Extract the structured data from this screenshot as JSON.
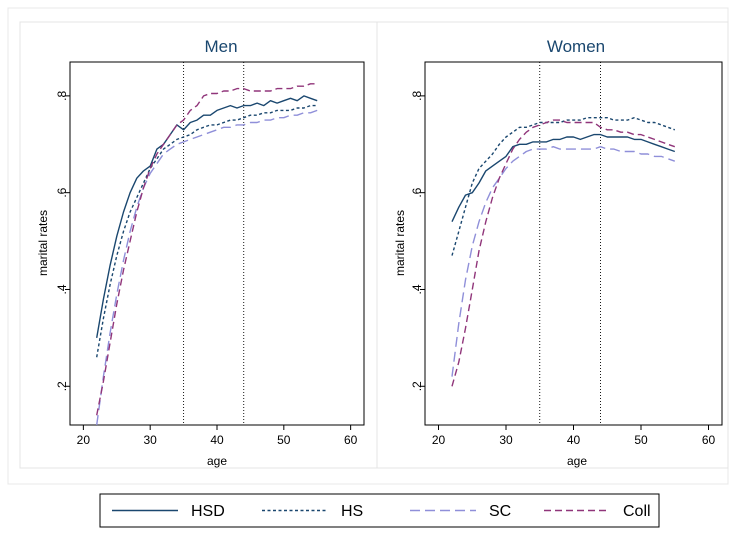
{
  "chart_data": [
    {
      "type": "line",
      "title": "Men",
      "xlabel": "age",
      "ylabel": "marital rates",
      "xlim": [
        18,
        62
      ],
      "ylim": [
        0.12,
        0.87
      ],
      "xticks": [
        20,
        30,
        40,
        50,
        60
      ],
      "yticks": [
        0.2,
        0.4,
        0.6,
        0.8
      ],
      "ytick_labels": [
        ".2",
        ".4",
        ".6",
        ".8"
      ],
      "vlines": [
        35,
        44
      ],
      "series": [
        {
          "name": "HSD",
          "color": "#1a476f",
          "dash": "solid",
          "x": [
            22,
            23,
            24,
            25,
            26,
            27,
            28,
            29,
            30,
            31,
            32,
            33,
            34,
            35,
            36,
            37,
            38,
            39,
            40,
            41,
            42,
            43,
            44,
            45,
            46,
            47,
            48,
            49,
            50,
            51,
            52,
            53,
            54,
            55
          ],
          "y": [
            0.3,
            0.38,
            0.45,
            0.51,
            0.56,
            0.6,
            0.63,
            0.645,
            0.655,
            0.69,
            0.7,
            0.72,
            0.74,
            0.73,
            0.745,
            0.75,
            0.76,
            0.76,
            0.77,
            0.775,
            0.78,
            0.775,
            0.78,
            0.78,
            0.785,
            0.78,
            0.79,
            0.785,
            0.79,
            0.795,
            0.79,
            0.8,
            0.795,
            0.79
          ]
        },
        {
          "name": "HS",
          "color": "#1a476f",
          "dash": "dotted",
          "x": [
            22,
            23,
            24,
            25,
            26,
            27,
            28,
            29,
            30,
            31,
            32,
            33,
            34,
            35,
            36,
            37,
            38,
            39,
            40,
            41,
            42,
            43,
            44,
            45,
            46,
            47,
            48,
            49,
            50,
            51,
            52,
            53,
            54,
            55
          ],
          "y": [
            0.26,
            0.34,
            0.41,
            0.47,
            0.52,
            0.56,
            0.59,
            0.62,
            0.65,
            0.67,
            0.69,
            0.7,
            0.71,
            0.715,
            0.72,
            0.73,
            0.735,
            0.74,
            0.74,
            0.745,
            0.75,
            0.75,
            0.755,
            0.76,
            0.76,
            0.765,
            0.765,
            0.77,
            0.77,
            0.77,
            0.775,
            0.775,
            0.78,
            0.78
          ]
        },
        {
          "name": "SC",
          "color": "#8f8fd9",
          "dash": "longdash",
          "x": [
            22,
            23,
            24,
            25,
            26,
            27,
            28,
            29,
            30,
            31,
            32,
            33,
            34,
            35,
            36,
            37,
            38,
            39,
            40,
            41,
            42,
            43,
            44,
            45,
            46,
            47,
            48,
            49,
            50,
            51,
            52,
            53,
            54,
            55
          ],
          "y": [
            0.12,
            0.22,
            0.31,
            0.39,
            0.46,
            0.52,
            0.57,
            0.61,
            0.64,
            0.66,
            0.68,
            0.69,
            0.7,
            0.705,
            0.71,
            0.715,
            0.72,
            0.725,
            0.73,
            0.735,
            0.735,
            0.74,
            0.74,
            0.745,
            0.745,
            0.75,
            0.75,
            0.755,
            0.755,
            0.76,
            0.76,
            0.765,
            0.765,
            0.77
          ]
        },
        {
          "name": "Coll",
          "color": "#90357a",
          "dash": "dash",
          "x": [
            22,
            23,
            24,
            25,
            26,
            27,
            28,
            29,
            30,
            31,
            32,
            33,
            34,
            35,
            36,
            37,
            38,
            39,
            40,
            41,
            42,
            43,
            44,
            45,
            46,
            47,
            48,
            49,
            50,
            51,
            52,
            53,
            54,
            55
          ],
          "y": [
            0.14,
            0.21,
            0.29,
            0.37,
            0.44,
            0.5,
            0.56,
            0.61,
            0.65,
            0.68,
            0.7,
            0.72,
            0.74,
            0.75,
            0.77,
            0.78,
            0.8,
            0.805,
            0.805,
            0.81,
            0.81,
            0.815,
            0.815,
            0.81,
            0.81,
            0.81,
            0.81,
            0.815,
            0.815,
            0.815,
            0.82,
            0.82,
            0.825,
            0.825
          ]
        }
      ]
    },
    {
      "type": "line",
      "title": "Women",
      "xlabel": "age",
      "ylabel": "marital rates",
      "xlim": [
        18,
        62
      ],
      "ylim": [
        0.12,
        0.87
      ],
      "xticks": [
        20,
        30,
        40,
        50,
        60
      ],
      "yticks": [
        0.2,
        0.4,
        0.6,
        0.8
      ],
      "ytick_labels": [
        ".2",
        ".4",
        ".6",
        ".8"
      ],
      "vlines": [
        35,
        44
      ],
      "series": [
        {
          "name": "HSD",
          "color": "#1a476f",
          "dash": "solid",
          "x": [
            22,
            23,
            24,
            25,
            26,
            27,
            28,
            29,
            30,
            31,
            32,
            33,
            34,
            35,
            36,
            37,
            38,
            39,
            40,
            41,
            42,
            43,
            44,
            45,
            46,
            47,
            48,
            49,
            50,
            51,
            52,
            53,
            54,
            55
          ],
          "y": [
            0.54,
            0.57,
            0.595,
            0.6,
            0.62,
            0.645,
            0.655,
            0.665,
            0.675,
            0.695,
            0.7,
            0.7,
            0.705,
            0.705,
            0.705,
            0.71,
            0.71,
            0.715,
            0.715,
            0.71,
            0.715,
            0.72,
            0.72,
            0.715,
            0.715,
            0.715,
            0.715,
            0.71,
            0.71,
            0.705,
            0.7,
            0.695,
            0.69,
            0.685
          ]
        },
        {
          "name": "HS",
          "color": "#1a476f",
          "dash": "dotted",
          "x": [
            22,
            23,
            24,
            25,
            26,
            27,
            28,
            29,
            30,
            31,
            32,
            33,
            34,
            35,
            36,
            37,
            38,
            39,
            40,
            41,
            42,
            43,
            44,
            45,
            46,
            47,
            48,
            49,
            50,
            51,
            52,
            53,
            54,
            55
          ],
          "y": [
            0.47,
            0.52,
            0.57,
            0.62,
            0.65,
            0.665,
            0.68,
            0.7,
            0.715,
            0.725,
            0.735,
            0.735,
            0.74,
            0.745,
            0.745,
            0.745,
            0.745,
            0.75,
            0.75,
            0.75,
            0.755,
            0.755,
            0.755,
            0.755,
            0.75,
            0.75,
            0.75,
            0.755,
            0.75,
            0.745,
            0.745,
            0.74,
            0.735,
            0.73
          ]
        },
        {
          "name": "SC",
          "color": "#8f8fd9",
          "dash": "longdash",
          "x": [
            22,
            23,
            24,
            25,
            26,
            27,
            28,
            29,
            30,
            31,
            32,
            33,
            34,
            35,
            36,
            37,
            38,
            39,
            40,
            41,
            42,
            43,
            44,
            45,
            46,
            47,
            48,
            49,
            50,
            51,
            52,
            53,
            54,
            55
          ],
          "y": [
            0.22,
            0.33,
            0.42,
            0.49,
            0.54,
            0.58,
            0.61,
            0.63,
            0.65,
            0.665,
            0.675,
            0.685,
            0.69,
            0.69,
            0.69,
            0.695,
            0.69,
            0.69,
            0.69,
            0.69,
            0.69,
            0.69,
            0.695,
            0.69,
            0.69,
            0.685,
            0.685,
            0.685,
            0.68,
            0.68,
            0.675,
            0.675,
            0.67,
            0.665
          ]
        },
        {
          "name": "Coll",
          "color": "#90357a",
          "dash": "dash",
          "x": [
            22,
            23,
            24,
            25,
            26,
            27,
            28,
            29,
            30,
            31,
            32,
            33,
            34,
            35,
            36,
            37,
            38,
            39,
            40,
            41,
            42,
            43,
            44,
            45,
            46,
            47,
            48,
            49,
            50,
            51,
            52,
            53,
            54,
            55
          ],
          "y": [
            0.2,
            0.25,
            0.32,
            0.4,
            0.48,
            0.54,
            0.59,
            0.63,
            0.66,
            0.69,
            0.71,
            0.725,
            0.735,
            0.74,
            0.745,
            0.75,
            0.75,
            0.745,
            0.745,
            0.745,
            0.745,
            0.745,
            0.735,
            0.73,
            0.73,
            0.725,
            0.725,
            0.72,
            0.72,
            0.715,
            0.71,
            0.705,
            0.7,
            0.695
          ]
        }
      ]
    }
  ],
  "legend": {
    "placement": "bottom",
    "items": [
      {
        "label": "HSD",
        "color": "#1a476f",
        "dash": "solid"
      },
      {
        "label": "HS",
        "color": "#1a476f",
        "dash": "dotted"
      },
      {
        "label": "SC",
        "color": "#8f8fd9",
        "dash": "longdash"
      },
      {
        "label": "Coll",
        "color": "#90357a",
        "dash": "dash"
      }
    ]
  }
}
